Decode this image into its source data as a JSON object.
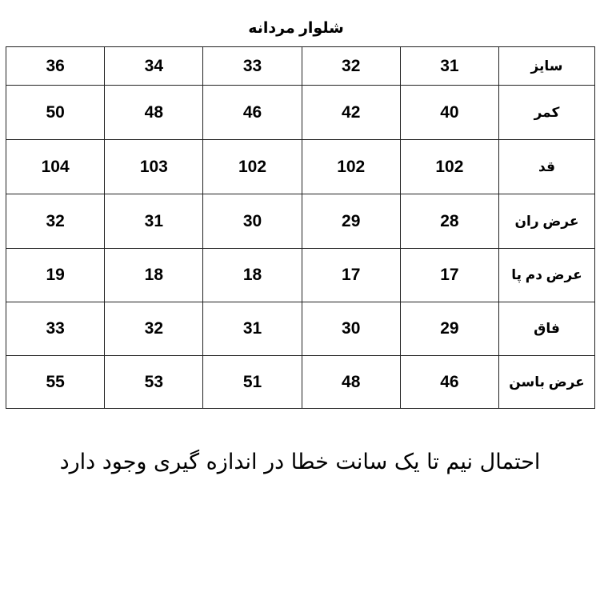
{
  "title": "شلوار مردانه",
  "table": {
    "rows": [
      {
        "label": "سایز",
        "values": [
          "31",
          "32",
          "33",
          "34",
          "36"
        ]
      },
      {
        "label": "کمر",
        "values": [
          "40",
          "42",
          "46",
          "48",
          "50"
        ]
      },
      {
        "label": "قد",
        "values": [
          "102",
          "102",
          "102",
          "103",
          "104"
        ]
      },
      {
        "label": "عرض ران",
        "values": [
          "28",
          "29",
          "30",
          "31",
          "32"
        ]
      },
      {
        "label": "عرض دم پا",
        "values": [
          "17",
          "17",
          "18",
          "18",
          "19"
        ]
      },
      {
        "label": "فاق",
        "values": [
          "29",
          "30",
          "31",
          "32",
          "33"
        ]
      },
      {
        "label": "عرض باسن",
        "values": [
          "46",
          "48",
          "51",
          "53",
          "55"
        ]
      }
    ]
  },
  "footer": "احتمال نیم  تا یک سانت خطا در اندازه گیری وجود دارد"
}
